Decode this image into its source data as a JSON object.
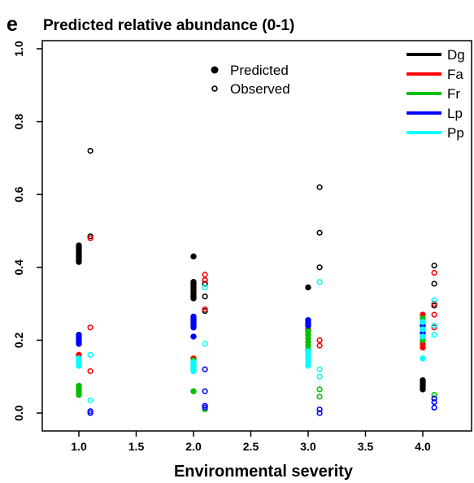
{
  "panel_label": "e",
  "chart_data": {
    "type": "scatter",
    "title": "Predicted relative abundance (0-1)",
    "xlabel": "Environmental severity",
    "ylabel": "",
    "xlim": [
      0.75,
      4.2
    ],
    "ylim": [
      0.0,
      1.0
    ],
    "x_ticks": [
      "1.0",
      "1.5",
      "2.0",
      "2.5",
      "3.0",
      "3.5",
      "4.0"
    ],
    "y_ticks": [
      "0.0",
      "0.2",
      "0.4",
      "0.6",
      "0.8",
      "1.0"
    ],
    "grid": false,
    "marker_legend": {
      "position": "top-center",
      "entries": [
        {
          "label": "Predicted",
          "marker": "filled-circle"
        },
        {
          "label": "Observed",
          "marker": "open-circle"
        }
      ]
    },
    "species_legend": {
      "position": "top-right",
      "entries": [
        {
          "label": "Dg",
          "color": "#000000"
        },
        {
          "label": "Fa",
          "color": "#ff0000"
        },
        {
          "label": "Fr",
          "color": "#00c000"
        },
        {
          "label": "Lp",
          "color": "#0000ff"
        },
        {
          "label": "Pp",
          "color": "#00ffff"
        }
      ]
    },
    "series": [
      {
        "name": "Dg",
        "color": "#000000",
        "predicted": [
          [
            1.0,
            0.46
          ],
          [
            1.0,
            0.455
          ],
          [
            1.0,
            0.45
          ],
          [
            1.0,
            0.445
          ],
          [
            1.0,
            0.44
          ],
          [
            1.0,
            0.435
          ],
          [
            1.0,
            0.43
          ],
          [
            1.0,
            0.425
          ],
          [
            1.0,
            0.42
          ],
          [
            1.0,
            0.415
          ],
          [
            2.0,
            0.43
          ],
          [
            2.0,
            0.36
          ],
          [
            2.0,
            0.355
          ],
          [
            2.0,
            0.35
          ],
          [
            2.0,
            0.345
          ],
          [
            2.0,
            0.34
          ],
          [
            2.0,
            0.335
          ],
          [
            2.0,
            0.33
          ],
          [
            2.0,
            0.325
          ],
          [
            2.0,
            0.32
          ],
          [
            2.0,
            0.315
          ],
          [
            3.0,
            0.345
          ],
          [
            4.0,
            0.09
          ],
          [
            4.0,
            0.085
          ],
          [
            4.0,
            0.08
          ],
          [
            4.0,
            0.075
          ],
          [
            4.0,
            0.07
          ],
          [
            4.0,
            0.065
          ]
        ],
        "observed": [
          [
            1.1,
            0.72
          ],
          [
            1.1,
            0.485
          ],
          [
            2.1,
            0.365
          ],
          [
            2.1,
            0.355
          ],
          [
            2.1,
            0.32
          ],
          [
            2.1,
            0.28
          ],
          [
            3.1,
            0.62
          ],
          [
            3.1,
            0.495
          ],
          [
            3.1,
            0.4
          ],
          [
            4.1,
            0.405
          ],
          [
            4.1,
            0.355
          ],
          [
            4.1,
            0.295
          ]
        ]
      },
      {
        "name": "Fa",
        "color": "#ff0000",
        "predicted": [
          [
            1.0,
            0.16
          ],
          [
            2.0,
            0.15
          ],
          [
            3.0,
            0.23
          ],
          [
            4.0,
            0.27
          ],
          [
            4.0,
            0.19
          ],
          [
            4.0,
            0.18
          ]
        ],
        "observed": [
          [
            1.1,
            0.48
          ],
          [
            1.1,
            0.235
          ],
          [
            1.1,
            0.115
          ],
          [
            2.1,
            0.38
          ],
          [
            2.1,
            0.365
          ],
          [
            2.1,
            0.285
          ],
          [
            2.1,
            0.02
          ],
          [
            3.1,
            0.2
          ],
          [
            3.1,
            0.185
          ],
          [
            4.1,
            0.385
          ],
          [
            4.1,
            0.3
          ],
          [
            4.1,
            0.27
          ],
          [
            4.1,
            0.235
          ]
        ]
      },
      {
        "name": "Fr",
        "color": "#00c000",
        "predicted": [
          [
            1.0,
            0.075
          ],
          [
            1.0,
            0.07
          ],
          [
            1.0,
            0.065
          ],
          [
            1.0,
            0.06
          ],
          [
            1.0,
            0.055
          ],
          [
            1.0,
            0.05
          ],
          [
            2.0,
            0.06
          ],
          [
            2.0,
            0.145
          ],
          [
            2.0,
            0.13
          ],
          [
            3.0,
            0.225
          ],
          [
            3.0,
            0.215
          ],
          [
            3.0,
            0.205
          ],
          [
            3.0,
            0.195
          ],
          [
            3.0,
            0.185
          ],
          [
            3.0,
            0.175
          ],
          [
            4.0,
            0.26
          ],
          [
            4.0,
            0.24
          ],
          [
            4.0,
            0.22
          ],
          [
            4.0,
            0.2
          ]
        ],
        "observed": [
          [
            2.1,
            0.01
          ],
          [
            3.1,
            0.065
          ],
          [
            3.1,
            0.045
          ],
          [
            4.1,
            0.05
          ],
          [
            4.1,
            0.04
          ]
        ]
      },
      {
        "name": "Lp",
        "color": "#0000ff",
        "predicted": [
          [
            1.0,
            0.215
          ],
          [
            1.0,
            0.21
          ],
          [
            1.0,
            0.205
          ],
          [
            1.0,
            0.2
          ],
          [
            1.0,
            0.195
          ],
          [
            1.0,
            0.19
          ],
          [
            2.0,
            0.265
          ],
          [
            2.0,
            0.26
          ],
          [
            2.0,
            0.255
          ],
          [
            2.0,
            0.25
          ],
          [
            2.0,
            0.245
          ],
          [
            2.0,
            0.24
          ],
          [
            2.0,
            0.235
          ],
          [
            2.0,
            0.21
          ],
          [
            3.0,
            0.255
          ],
          [
            3.0,
            0.25
          ],
          [
            3.0,
            0.245
          ],
          [
            3.0,
            0.24
          ],
          [
            4.0,
            0.25
          ],
          [
            4.0,
            0.24
          ],
          [
            4.0,
            0.23
          ],
          [
            4.0,
            0.22
          ],
          [
            4.0,
            0.21
          ]
        ],
        "observed": [
          [
            1.1,
            0.005
          ],
          [
            1.1,
            0.0
          ],
          [
            2.1,
            0.12
          ],
          [
            2.1,
            0.06
          ],
          [
            2.1,
            0.02
          ],
          [
            2.1,
            0.015
          ],
          [
            3.1,
            0.01
          ],
          [
            3.1,
            0.0
          ],
          [
            4.1,
            0.04
          ],
          [
            4.1,
            0.03
          ],
          [
            4.1,
            0.015
          ]
        ]
      },
      {
        "name": "Pp",
        "color": "#00ffff",
        "predicted": [
          [
            1.0,
            0.15
          ],
          [
            1.0,
            0.145
          ],
          [
            1.0,
            0.14
          ],
          [
            1.0,
            0.135
          ],
          [
            1.0,
            0.13
          ],
          [
            2.0,
            0.14
          ],
          [
            2.0,
            0.135
          ],
          [
            2.0,
            0.13
          ],
          [
            2.0,
            0.125
          ],
          [
            2.0,
            0.12
          ],
          [
            2.0,
            0.115
          ],
          [
            3.0,
            0.17
          ],
          [
            3.0,
            0.16
          ],
          [
            3.0,
            0.15
          ],
          [
            3.0,
            0.14
          ],
          [
            3.0,
            0.13
          ],
          [
            4.0,
            0.25
          ],
          [
            4.0,
            0.23
          ],
          [
            4.0,
            0.21
          ],
          [
            4.0,
            0.15
          ]
        ],
        "observed": [
          [
            1.1,
            0.16
          ],
          [
            1.1,
            0.035
          ],
          [
            2.1,
            0.345
          ],
          [
            2.1,
            0.19
          ],
          [
            3.1,
            0.36
          ],
          [
            3.1,
            0.12
          ],
          [
            3.1,
            0.1
          ],
          [
            4.1,
            0.31
          ],
          [
            4.1,
            0.24
          ],
          [
            4.1,
            0.215
          ]
        ]
      }
    ]
  }
}
